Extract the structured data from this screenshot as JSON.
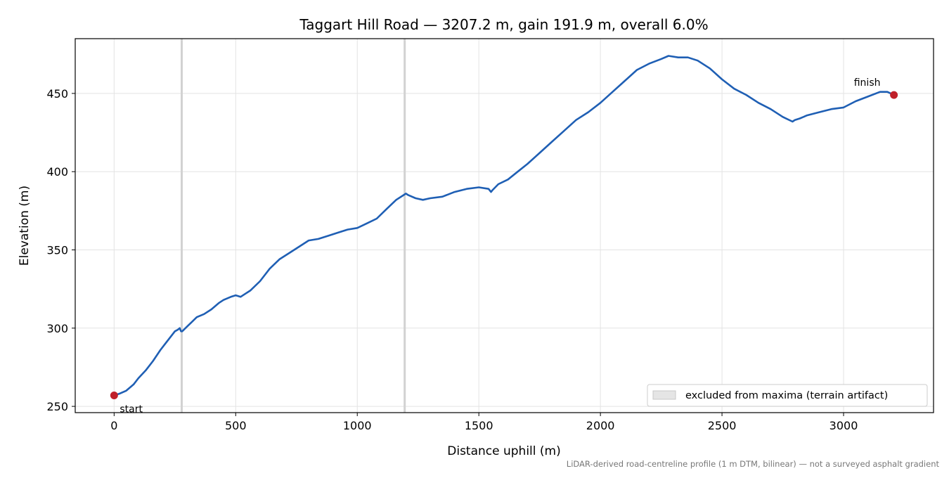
{
  "chart_data": {
    "type": "line",
    "title": "Taggart Hill Road — 3207.2 m, gain 191.9 m, overall 6.0%",
    "xlabel": "Distance uphill (m)",
    "ylabel": "Elevation (m)",
    "xlim": [
      -160,
      3370
    ],
    "ylim": [
      246,
      485
    ],
    "xticks": [
      0,
      500,
      1000,
      1500,
      2000,
      2500,
      3000
    ],
    "yticks": [
      250,
      300,
      350,
      400,
      450
    ],
    "grid": true,
    "series": [
      {
        "color": "#1f5fb4",
        "x": [
          0,
          20,
          50,
          80,
          100,
          130,
          160,
          190,
          210,
          230,
          250,
          262,
          270,
          275,
          280,
          300,
          320,
          340,
          370,
          400,
          430,
          450,
          480,
          500,
          520,
          540,
          560,
          600,
          640,
          680,
          720,
          760,
          800,
          840,
          880,
          920,
          960,
          1000,
          1040,
          1080,
          1120,
          1160,
          1190,
          1200,
          1210,
          1240,
          1270,
          1300,
          1350,
          1400,
          1450,
          1500,
          1540,
          1550,
          1555,
          1580,
          1620,
          1660,
          1700,
          1750,
          1800,
          1850,
          1900,
          1950,
          2000,
          2050,
          2100,
          2150,
          2200,
          2250,
          2280,
          2320,
          2360,
          2400,
          2450,
          2500,
          2550,
          2600,
          2650,
          2700,
          2750,
          2790,
          2800,
          2820,
          2850,
          2900,
          2950,
          3000,
          3050,
          3100,
          3150,
          3180,
          3207
        ],
        "y": [
          257,
          258,
          260,
          264,
          268,
          273,
          279,
          286,
          290,
          294,
          298,
          299,
          300,
          298,
          298,
          301,
          304,
          307,
          309,
          312,
          316,
          318,
          320,
          321,
          320,
          322,
          324,
          330,
          338,
          344,
          348,
          352,
          356,
          357,
          359,
          361,
          363,
          364,
          367,
          370,
          376,
          382,
          385,
          386,
          385,
          383,
          382,
          383,
          384,
          387,
          389,
          390,
          389,
          387,
          388,
          392,
          395,
          400,
          405,
          412,
          419,
          426,
          433,
          438,
          444,
          451,
          458,
          465,
          469,
          472,
          474,
          473,
          473,
          471,
          466,
          459,
          453,
          449,
          444,
          440,
          435,
          432,
          433,
          434,
          436,
          438,
          440,
          441,
          445,
          448,
          451,
          451,
          449
        ]
      }
    ],
    "markers": [
      {
        "x": 0,
        "y": 257,
        "label": "start",
        "color": "#c0202a"
      },
      {
        "x": 3207,
        "y": 449,
        "label": "finish",
        "color": "#c0202a"
      }
    ],
    "excluded_x": [
      278,
      1195
    ],
    "legend": {
      "position": "bottom-right",
      "label": "excluded from maxima (terrain artifact)"
    },
    "footnote": "LiDAR-derived road-centreline profile (1 m DTM, bilinear) — not a surveyed asphalt gradient"
  }
}
